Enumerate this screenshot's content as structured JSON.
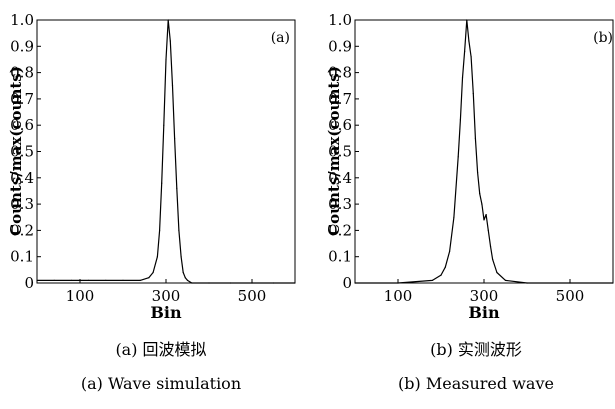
{
  "panels": [
    {
      "tag": "(a)",
      "caption_zh": "(a) 回波模拟",
      "caption_en": "(a) Wave simulation"
    },
    {
      "tag": "(b)",
      "caption_zh": "(b) 实测波形",
      "caption_en": "(b) Measured wave"
    }
  ],
  "chart_data": [
    {
      "type": "line",
      "title": "",
      "xlabel": "Bin",
      "ylabel": "Counts/max(counts)",
      "xlim": [
        0,
        600
      ],
      "ylim": [
        0,
        1.0
      ],
      "xticks": [
        100,
        300,
        500
      ],
      "yticks": [
        0,
        0.1,
        0.2,
        0.3,
        0.4,
        0.5,
        0.6,
        0.7,
        0.8,
        0.9,
        1.0
      ],
      "ytick_labels": [
        "0",
        "0.1",
        "0.2",
        "0.3",
        "0.4",
        "0.5",
        "0.6",
        "0.7",
        "0.8",
        "0.9",
        "1.0"
      ],
      "grid": false,
      "series": [
        {
          "color": "#000000",
          "x": [
            0,
            40,
            80,
            120,
            160,
            200,
            240,
            260,
            270,
            280,
            285,
            290,
            295,
            300,
            305,
            310,
            315,
            320,
            325,
            330,
            335,
            340,
            345,
            350,
            360,
            400,
            450,
            500,
            550,
            600
          ],
          "y": [
            0.01,
            0.01,
            0.01,
            0.01,
            0.01,
            0.01,
            0.01,
            0.02,
            0.04,
            0.1,
            0.2,
            0.38,
            0.6,
            0.85,
            1.0,
            0.92,
            0.75,
            0.55,
            0.36,
            0.2,
            0.1,
            0.04,
            0.02,
            0.01,
            0.0,
            0.0,
            0.0,
            0.0,
            0.0,
            0.0
          ]
        }
      ]
    },
    {
      "type": "line",
      "title": "",
      "xlabel": "Bin",
      "ylabel": "Counts/max(counts)",
      "xlim": [
        0,
        600
      ],
      "ylim": [
        0,
        1.0
      ],
      "xticks": [
        100,
        300,
        500
      ],
      "yticks": [
        0,
        0.1,
        0.2,
        0.3,
        0.4,
        0.5,
        0.6,
        0.7,
        0.8,
        0.9,
        1.0
      ],
      "ytick_labels": [
        "0",
        "0.1",
        "0.2",
        "0.3",
        "0.4",
        "0.5",
        "0.6",
        "0.7",
        "0.8",
        "0.9",
        "1.0"
      ],
      "grid": false,
      "series": [
        {
          "color": "#000000",
          "x": [
            0,
            100,
            180,
            200,
            210,
            220,
            230,
            240,
            245,
            250,
            255,
            260,
            265,
            270,
            275,
            280,
            285,
            290,
            295,
            300,
            305,
            310,
            315,
            320,
            330,
            350,
            400,
            500,
            600
          ],
          "y": [
            0.0,
            0.0,
            0.01,
            0.03,
            0.06,
            0.12,
            0.25,
            0.48,
            0.62,
            0.78,
            0.88,
            1.0,
            0.92,
            0.86,
            0.72,
            0.55,
            0.42,
            0.34,
            0.3,
            0.24,
            0.26,
            0.2,
            0.14,
            0.09,
            0.04,
            0.01,
            0.0,
            0.0,
            0.0
          ]
        }
      ]
    }
  ]
}
